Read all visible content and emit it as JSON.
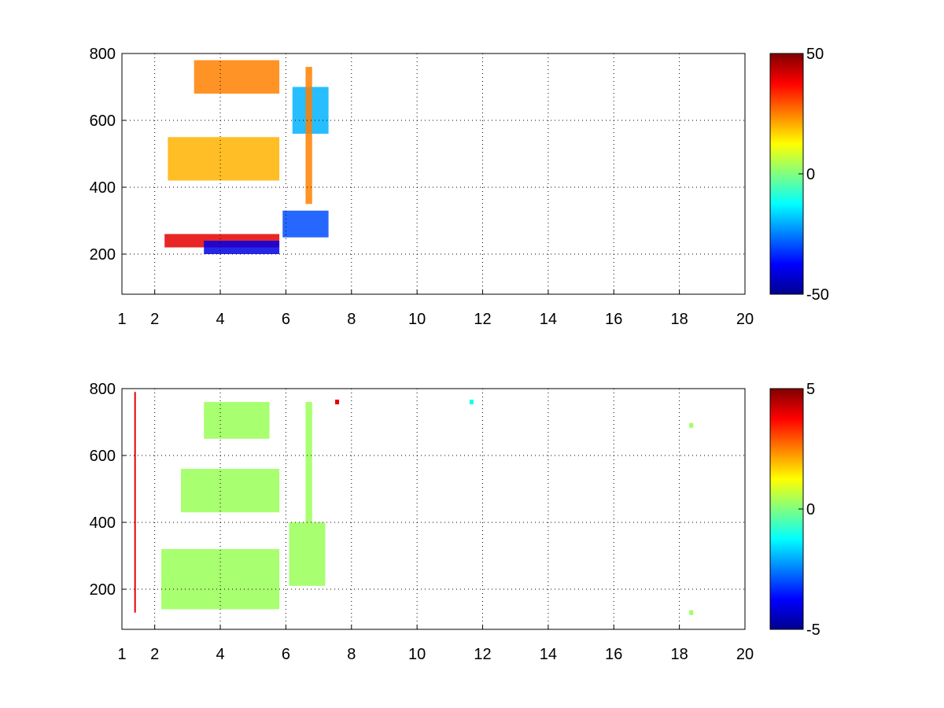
{
  "chart_data": [
    {
      "type": "heatmap",
      "title": "",
      "xlabel": "",
      "ylabel": "",
      "xlim": [
        1,
        20
      ],
      "ylim": [
        80,
        800
      ],
      "x_ticks": [
        "1",
        "2",
        "4",
        "6",
        "8",
        "10",
        "12",
        "14",
        "16",
        "18",
        "20"
      ],
      "x_tick_values": [
        1,
        2,
        4,
        6,
        8,
        10,
        12,
        14,
        16,
        18,
        20
      ],
      "y_ticks": [
        "200",
        "400",
        "600",
        "800"
      ],
      "y_tick_values": [
        200,
        400,
        600,
        800
      ],
      "grid": true,
      "colormap": "jet",
      "colorbar": {
        "min": -50,
        "max": 50,
        "ticks": [
          "-50",
          "0",
          "50"
        ],
        "tick_values": [
          -50,
          0,
          50
        ]
      },
      "features": [
        {
          "kind": "band",
          "x_start": 2.3,
          "x_end": 5.8,
          "y_start": 220,
          "y_end": 260,
          "value": 40
        },
        {
          "kind": "band",
          "x_start": 3.5,
          "x_end": 5.8,
          "y_start": 200,
          "y_end": 240,
          "value": -40
        },
        {
          "kind": "band",
          "x_start": 5.9,
          "x_end": 7.3,
          "y_start": 250,
          "y_end": 330,
          "value": -30
        },
        {
          "kind": "band",
          "x_start": 2.4,
          "x_end": 5.8,
          "y_start": 420,
          "y_end": 550,
          "value": 20
        },
        {
          "kind": "band",
          "x_start": 3.2,
          "x_end": 5.8,
          "y_start": 680,
          "y_end": 780,
          "value": 25
        },
        {
          "kind": "band",
          "x_start": 6.2,
          "x_end": 7.3,
          "y_start": 560,
          "y_end": 700,
          "value": -20
        },
        {
          "kind": "band",
          "x_start": 6.6,
          "x_end": 6.8,
          "y_start": 350,
          "y_end": 760,
          "value": 25
        }
      ]
    },
    {
      "type": "heatmap",
      "title": "",
      "xlabel": "",
      "ylabel": "",
      "xlim": [
        1,
        20
      ],
      "ylim": [
        80,
        800
      ],
      "x_ticks": [
        "1",
        "2",
        "4",
        "6",
        "8",
        "10",
        "12",
        "14",
        "16",
        "18",
        "20"
      ],
      "x_tick_values": [
        1,
        2,
        4,
        6,
        8,
        10,
        12,
        14,
        16,
        18,
        20
      ],
      "y_ticks": [
        "200",
        "400",
        "600",
        "800"
      ],
      "y_tick_values": [
        200,
        400,
        600,
        800
      ],
      "grid": true,
      "colormap": "jet",
      "colorbar": {
        "min": -5,
        "max": 5,
        "ticks": [
          "-5",
          "0",
          "5"
        ],
        "tick_values": [
          -5,
          0,
          5
        ]
      },
      "features": [
        {
          "kind": "region",
          "x_start": 2.2,
          "x_end": 5.8,
          "y_start": 140,
          "y_end": 320,
          "value": 0.3
        },
        {
          "kind": "region",
          "x_start": 2.8,
          "x_end": 5.8,
          "y_start": 430,
          "y_end": 560,
          "value": 0.3
        },
        {
          "kind": "region",
          "x_start": 3.5,
          "x_end": 5.5,
          "y_start": 650,
          "y_end": 760,
          "value": 0.3
        },
        {
          "kind": "region",
          "x_start": 6.1,
          "x_end": 7.2,
          "y_start": 210,
          "y_end": 400,
          "value": 0.3
        },
        {
          "kind": "region",
          "x_start": 6.6,
          "x_end": 6.8,
          "y_start": 400,
          "y_end": 760,
          "value": 0.3
        },
        {
          "kind": "line",
          "x": 1.4,
          "y_start": 130,
          "y_end": 790,
          "value": 4
        },
        {
          "kind": "spot",
          "x": 7.55,
          "y": 760,
          "value": 4
        },
        {
          "kind": "spot",
          "x": 11.65,
          "y": 760,
          "value": -1
        },
        {
          "kind": "spot",
          "x": 18.35,
          "y": 690,
          "value": 0.3
        },
        {
          "kind": "spot",
          "x": 18.35,
          "y": 130,
          "value": 0.3
        }
      ]
    }
  ]
}
